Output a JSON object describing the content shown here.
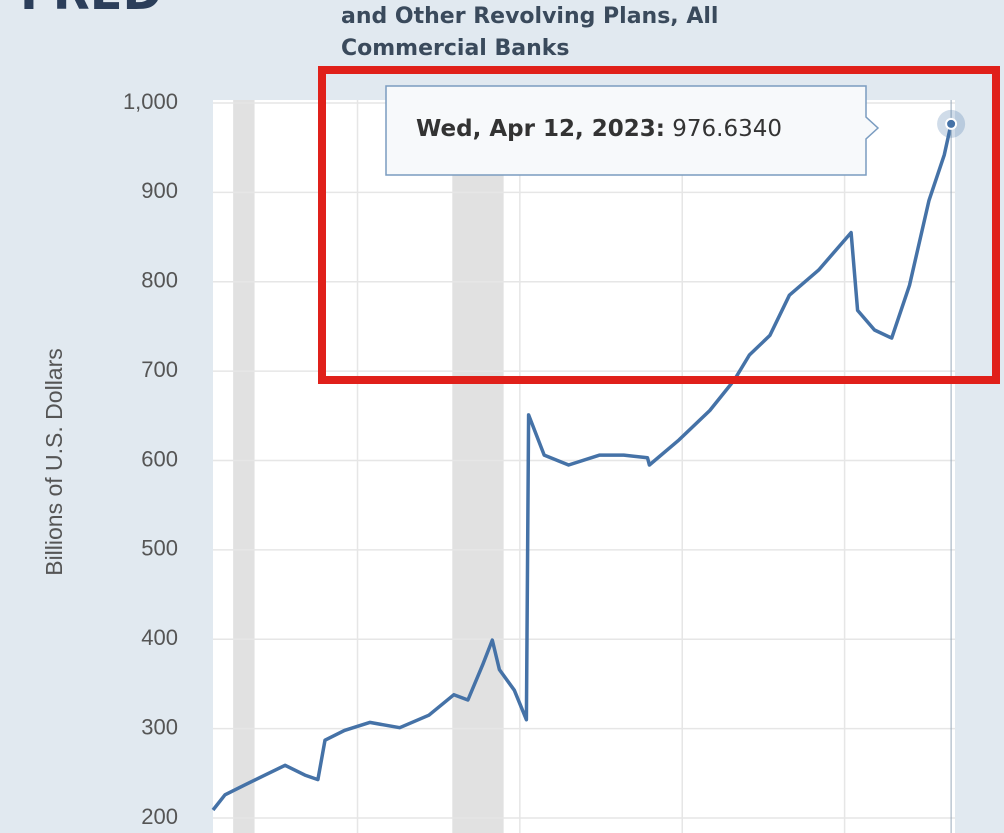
{
  "logo": "FRED",
  "chart_data": {
    "type": "line",
    "title_lines": [
      "and Other Revolving Plans, All",
      "Commercial Banks"
    ],
    "y_label": "Billions of U.S. Dollars",
    "x": [
      2000.55,
      2000.92,
      2001.53,
      2002.15,
      2002.77,
      2003.38,
      2003.78,
      2004.0,
      2004.6,
      2005.38,
      2006.3,
      2007.2,
      2007.97,
      2008.4,
      2008.85,
      2009.15,
      2009.37,
      2009.83,
      2010.2,
      2010.27,
      2010.75,
      2011.5,
      2012.46,
      2013.2,
      2013.93,
      2013.99,
      2014.9,
      2015.85,
      2016.6,
      2017.07,
      2017.7,
      2018.3,
      2019.2,
      2020.2,
      2020.4,
      2020.92,
      2021.45,
      2022.0,
      2022.6,
      2023.07,
      2023.28
    ],
    "values": [
      209,
      226,
      237,
      248,
      259,
      248,
      243,
      287,
      298,
      307,
      301,
      315,
      338,
      332,
      371,
      399,
      366,
      343,
      310,
      651,
      606,
      595,
      606,
      606,
      603,
      595,
      623,
      656,
      690,
      718,
      740,
      785,
      813,
      855,
      768,
      746,
      737,
      796,
      891,
      942,
      976.634
    ],
    "color": "#4572a7",
    "xlim": [
      2000.55,
      2023.4
    ],
    "xticks": [
      2005,
      2010,
      2015,
      2020
    ],
    "ylim": [
      200,
      1000
    ],
    "yticks": [
      200,
      300,
      400,
      500,
      600,
      700,
      800,
      900,
      {
        "value": 1000,
        "label": "1,000"
      }
    ],
    "grid": true,
    "recessions": [
      [
        2001.17,
        2001.83
      ],
      [
        2007.92,
        2009.5
      ]
    ],
    "tooltip": {
      "date": "Wed, Apr 12, 2023:",
      "value": "976.6340"
    }
  }
}
